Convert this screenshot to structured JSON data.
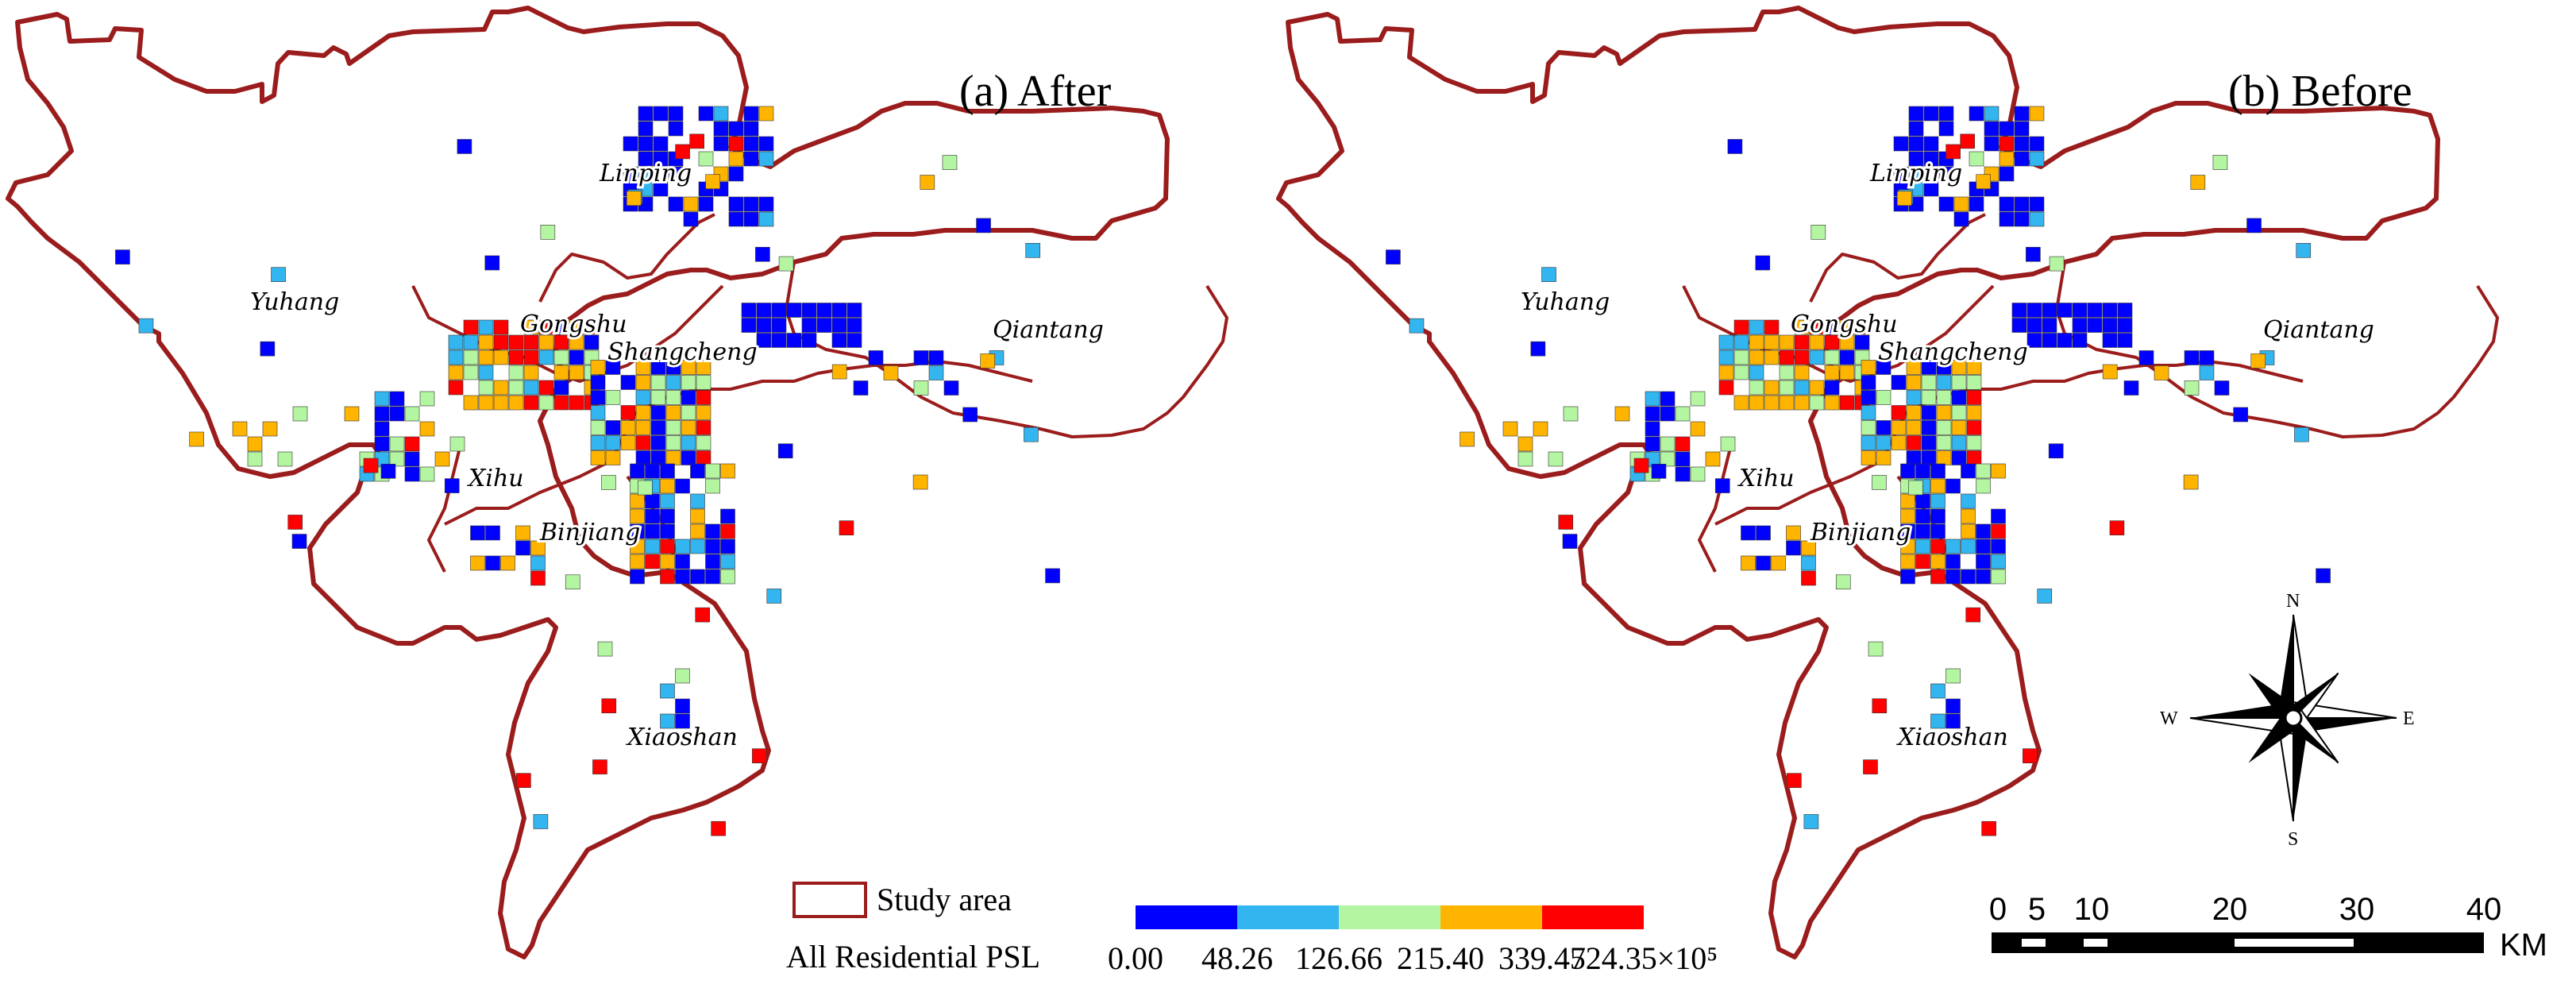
{
  "panels": [
    {
      "title": "(a)  After"
    },
    {
      "title": "(b)  Before"
    }
  ],
  "districts": [
    "Linping",
    "Yuhang",
    "Gongshu",
    "Shangcheng",
    "Qiantang",
    "Xihu",
    "Binjiang",
    "Xiaoshan"
  ],
  "legend": {
    "study_area_label": "Study area",
    "study_area_color": "#9b1c1c",
    "psl_label": "All Residential PSL",
    "classes": [
      {
        "color": "#0000ff"
      },
      {
        "color": "#33b5f0"
      },
      {
        "color": "#b3f5a0"
      },
      {
        "color": "#ffb400"
      },
      {
        "color": "#ff0000"
      }
    ],
    "breaks": [
      "0.00",
      "48.26",
      "126.66",
      "215.40",
      "339.47",
      "524.35×10⁵"
    ]
  },
  "scale_bar": {
    "ticks": [
      "0",
      "5",
      "10",
      "20",
      "30",
      "40"
    ],
    "unit": "KM"
  },
  "compass": {
    "n": "N",
    "s": "S",
    "e": "E",
    "w": "W"
  }
}
